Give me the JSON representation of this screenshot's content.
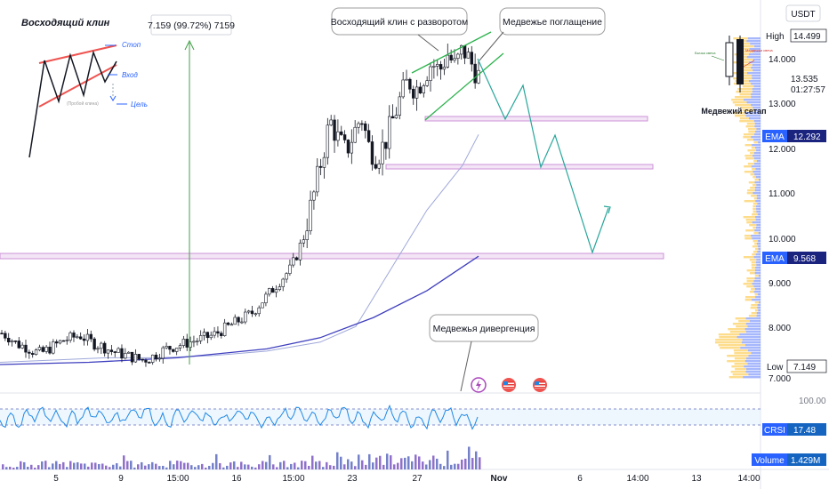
{
  "chart_data": {
    "type": "candlestick",
    "currency": "USDT",
    "x_ticks": [
      "5",
      "9",
      "15:00",
      "16",
      "15:00",
      "23",
      "27",
      "Nov",
      "6",
      "14:00",
      "13",
      "14:00"
    ],
    "y_ticks": [
      "14.000",
      "13.000",
      "12.000",
      "11.000",
      "10.000",
      "9.000",
      "8.000",
      "7.000"
    ],
    "price_tags": {
      "high_label": "High",
      "high_value": "14.499",
      "current_value": "13.535",
      "countdown": "01:27:57",
      "ema1_label": "EMA",
      "ema1_value": "12.292",
      "ema2_label": "EMA",
      "ema2_value": "9.568",
      "low_label": "Low",
      "low_value": "7.149"
    },
    "crsi": {
      "label": "CRSI",
      "value": "17.48",
      "top_tick": "100.00",
      "band_upper": 80,
      "band_lower": 20
    },
    "volume": {
      "label": "Volume",
      "value": "1.429M"
    },
    "measure_label": "7.159 (99.72%) 7159",
    "price_range": {
      "min": 6.7,
      "max": 14.8
    },
    "close_points": [
      7.85,
      7.75,
      7.6,
      7.55,
      7.45,
      7.4,
      7.5,
      7.6,
      7.7,
      7.75,
      7.8,
      7.7,
      7.6,
      7.55,
      7.45,
      7.4,
      7.35,
      7.3,
      7.25,
      7.3,
      7.4,
      7.5,
      7.55,
      7.6,
      7.65,
      7.7,
      7.75,
      7.8,
      7.9,
      8.0,
      8.1,
      8.2,
      8.3,
      8.5,
      8.7,
      8.9,
      9.1,
      9.3,
      9.7,
      10.3,
      11.0,
      11.8,
      12.6,
      12.2,
      11.9,
      12.3,
      12.7,
      12.0,
      11.8,
      12.1,
      12.6,
      13.1,
      13.5,
      13.3,
      13.6,
      13.9,
      13.7,
      14.1,
      13.8,
      14.2,
      13.9,
      13.6
    ],
    "ema_fast": [
      [
        0,
        7.2
      ],
      [
        60,
        7.25
      ],
      [
        120,
        7.3
      ],
      [
        180,
        7.3
      ],
      [
        240,
        7.35
      ],
      [
        300,
        7.45
      ],
      [
        360,
        7.65
      ],
      [
        400,
        8.0
      ],
      [
        440,
        9.3
      ],
      [
        480,
        10.6
      ],
      [
        520,
        11.6
      ],
      [
        538,
        12.29
      ]
    ],
    "ema_slow": [
      [
        0,
        7.15
      ],
      [
        100,
        7.2
      ],
      [
        200,
        7.3
      ],
      [
        300,
        7.5
      ],
      [
        360,
        7.75
      ],
      [
        420,
        8.2
      ],
      [
        480,
        8.8
      ],
      [
        538,
        9.57
      ]
    ],
    "annotations": {
      "wedge_title": "Восходящий клин",
      "wedge_stop": "Стоп",
      "wedge_entry": "Вход",
      "wedge_target": "Цель",
      "wedge_break": "(Пробой клина)",
      "callout_wedge": "Восходящий клин с разворотом",
      "callout_engulf": "Медвежье поглащение",
      "callout_divergence": "Медвежья дивергенция",
      "setup_title": "Медвежий сетап",
      "setup_bull": "Бычья свеча",
      "setup_bear": "Медвежья свеча"
    }
  }
}
